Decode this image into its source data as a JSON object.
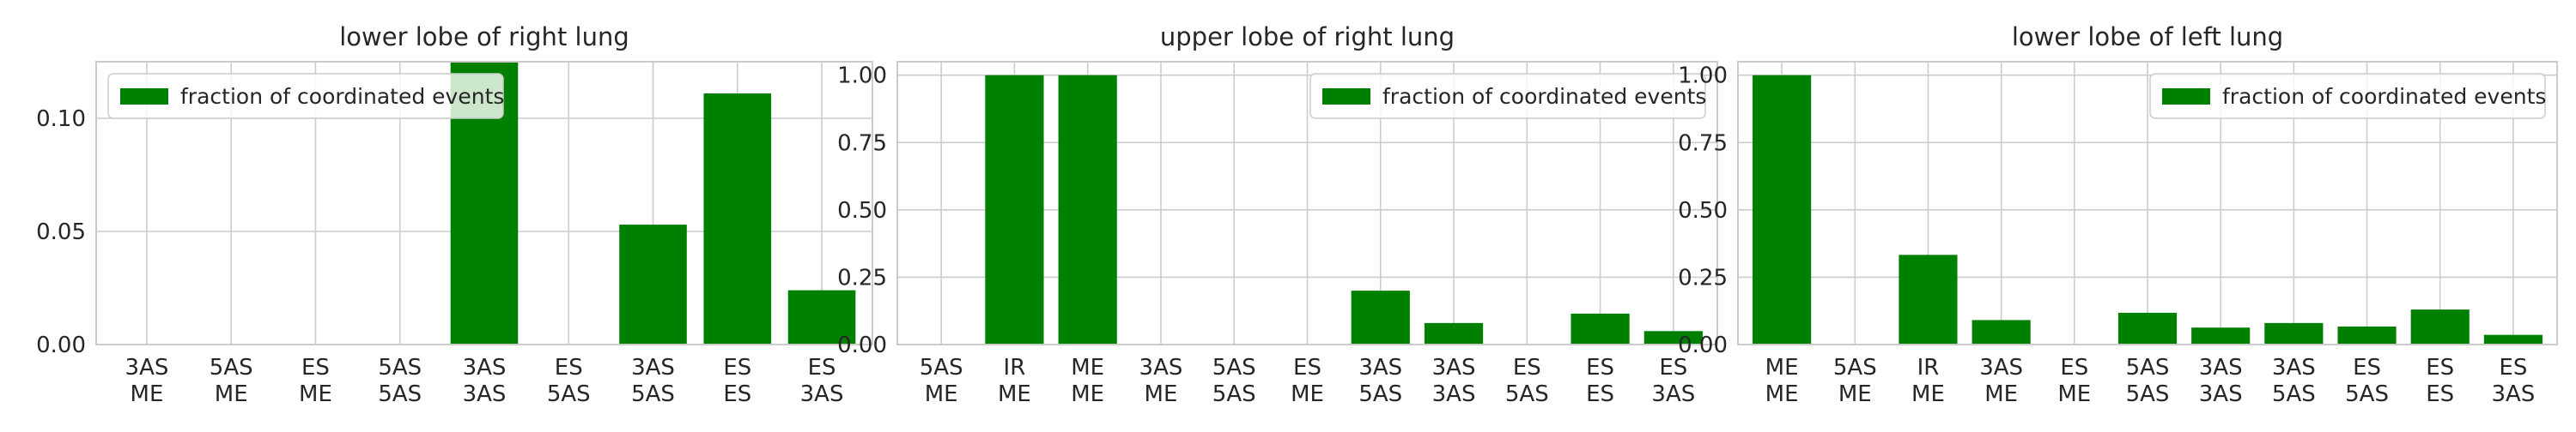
{
  "chart_data": [
    {
      "type": "bar",
      "title": "lower lobe of right lung",
      "xlabel": "",
      "ylabel": "",
      "categories": [
        [
          "3AS",
          "ME"
        ],
        [
          "5AS",
          "ME"
        ],
        [
          "ES",
          "ME"
        ],
        [
          "5AS",
          "5AS"
        ],
        [
          "3AS",
          "3AS"
        ],
        [
          "ES",
          "5AS"
        ],
        [
          "3AS",
          "5AS"
        ],
        [
          "ES",
          "ES"
        ],
        [
          "ES",
          "3AS"
        ]
      ],
      "series": [
        {
          "name": "fraction of coordinated events",
          "values": [
            0,
            0,
            0,
            0,
            0.125,
            0,
            0.053,
            0.111,
            0.024
          ]
        }
      ],
      "ylim": [
        0,
        0.125
      ],
      "yticks": [
        "0.00",
        "0.05",
        "0.10"
      ],
      "ytick_values": [
        0,
        0.05,
        0.1
      ],
      "legend": "top-left",
      "grid": true,
      "bar_color": "#008000"
    },
    {
      "type": "bar",
      "title": "upper lobe of right lung",
      "xlabel": "",
      "ylabel": "",
      "categories": [
        [
          "5AS",
          "ME"
        ],
        [
          "IR",
          "ME"
        ],
        [
          "ME",
          "ME"
        ],
        [
          "3AS",
          "ME"
        ],
        [
          "5AS",
          "5AS"
        ],
        [
          "ES",
          "ME"
        ],
        [
          "3AS",
          "5AS"
        ],
        [
          "3AS",
          "3AS"
        ],
        [
          "ES",
          "5AS"
        ],
        [
          "ES",
          "ES"
        ],
        [
          "ES",
          "3AS"
        ]
      ],
      "series": [
        {
          "name": "fraction of coordinated events",
          "values": [
            0,
            1.0,
            1.0,
            0,
            0,
            0,
            0.2,
            0.08,
            0,
            0.115,
            0.05
          ]
        }
      ],
      "ylim": [
        0,
        1.05
      ],
      "yticks": [
        "0.00",
        "0.25",
        "0.50",
        "0.75",
        "1.00"
      ],
      "ytick_values": [
        0,
        0.25,
        0.5,
        0.75,
        1.0
      ],
      "legend": "top-right",
      "grid": true,
      "bar_color": "#008000"
    },
    {
      "type": "bar",
      "title": "lower lobe of left lung",
      "xlabel": "",
      "ylabel": "",
      "categories": [
        [
          "ME",
          "ME"
        ],
        [
          "5AS",
          "ME"
        ],
        [
          "IR",
          "ME"
        ],
        [
          "3AS",
          "ME"
        ],
        [
          "ES",
          "ME"
        ],
        [
          "5AS",
          "5AS"
        ],
        [
          "3AS",
          "3AS"
        ],
        [
          "3AS",
          "5AS"
        ],
        [
          "ES",
          "5AS"
        ],
        [
          "ES",
          "ES"
        ],
        [
          "ES",
          "3AS"
        ]
      ],
      "series": [
        {
          "name": "fraction of coordinated events",
          "values": [
            1.0,
            0,
            0.333,
            0.091,
            0,
            0.118,
            0.063,
            0.08,
            0.067,
            0.13,
            0.036
          ]
        }
      ],
      "ylim": [
        0,
        1.05
      ],
      "yticks": [
        "0.00",
        "0.25",
        "0.50",
        "0.75",
        "1.00"
      ],
      "ytick_values": [
        0,
        0.25,
        0.5,
        0.75,
        1.0
      ],
      "legend": "top-right",
      "grid": true,
      "bar_color": "#008000"
    }
  ]
}
